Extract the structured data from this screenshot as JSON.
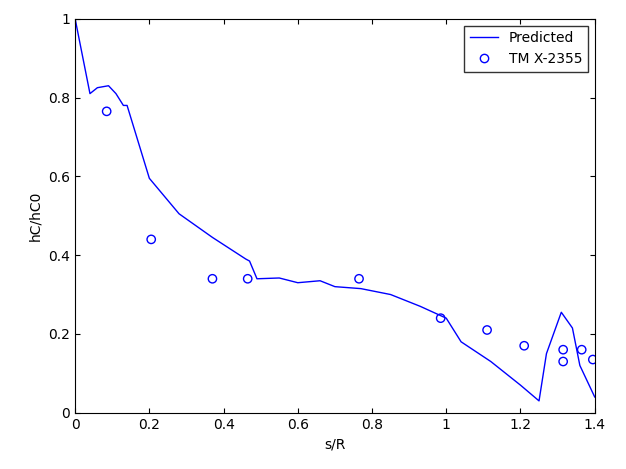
{
  "chart_data": {
    "type": "line",
    "xlabel": "s/R",
    "ylabel": "hC/hC0",
    "xlim": [
      0,
      1.4
    ],
    "ylim": [
      0,
      1
    ],
    "xticks": [
      0,
      0.2,
      0.4,
      0.6,
      0.8,
      1,
      1.2,
      1.4
    ],
    "yticks": [
      0,
      0.2,
      0.4,
      0.6,
      0.8,
      1
    ],
    "legend": "upper right",
    "series": [
      {
        "name": "Predicted",
        "type": "line",
        "color": "#0000ff",
        "line_style": "solid",
        "x": [
          0,
          0.04,
          0.06,
          0.09,
          0.11,
          0.13,
          0.14,
          0.2,
          0.28,
          0.37,
          0.46,
          0.47,
          0.49,
          0.55,
          0.6,
          0.66,
          0.7,
          0.77,
          0.85,
          0.93,
          1.0,
          1.04,
          1.12,
          1.2,
          1.25,
          1.27,
          1.31,
          1.34,
          1.36,
          1.4
        ],
        "values": [
          1.0,
          0.81,
          0.825,
          0.83,
          0.81,
          0.78,
          0.78,
          0.595,
          0.505,
          0.445,
          0.39,
          0.385,
          0.34,
          0.342,
          0.33,
          0.335,
          0.32,
          0.315,
          0.3,
          0.27,
          0.24,
          0.18,
          0.13,
          0.07,
          0.03,
          0.15,
          0.255,
          0.215,
          0.12,
          0.04
        ]
      },
      {
        "name": "TM X-2355",
        "type": "scatter",
        "color": "#0000ff",
        "marker": "o",
        "x": [
          0.085,
          0.205,
          0.37,
          0.465,
          0.765,
          0.985,
          1.11,
          1.21,
          1.315,
          1.315,
          1.365,
          1.395
        ],
        "values": [
          0.765,
          0.44,
          0.34,
          0.34,
          0.34,
          0.24,
          0.21,
          0.17,
          0.16,
          0.13,
          0.16,
          0.135
        ]
      }
    ]
  }
}
